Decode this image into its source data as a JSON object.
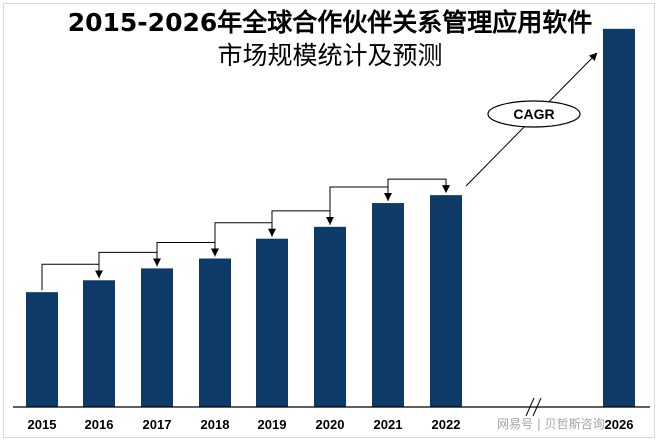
{
  "chart_data": {
    "type": "bar",
    "title_line1": "2015-2026年全球合作伙伴关系管理应用软件",
    "title_line2": "市场规模统计及预测",
    "categories": [
      "2015",
      "2016",
      "2017",
      "2018",
      "2019",
      "2020",
      "2021",
      "2022",
      "2026"
    ],
    "values": [
      29,
      32,
      35,
      37.5,
      42.5,
      45.5,
      51.5,
      53.5,
      95.5
    ],
    "ylim": [
      0,
      100
    ],
    "bar_color": "#0d3a66",
    "axis_color": "#000000",
    "annotation_text": "CAGR",
    "axis_break_after": "2022",
    "growth_arrows_between_consecutive_years": true
  },
  "watermark_text": "网易号 | 贝哲斯咨询"
}
